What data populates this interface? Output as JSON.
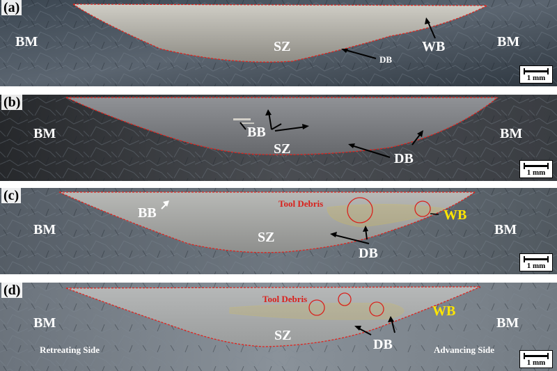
{
  "panels": [
    {
      "label": "(a)",
      "bm_left": "BM",
      "bm_right": "BM",
      "sz": "SZ",
      "wb": "WB",
      "db": "DB",
      "scale": "1 mm"
    },
    {
      "label": "(b)",
      "bm_left": "BM",
      "bm_right": "BM",
      "sz": "SZ",
      "bb": "BB",
      "db": "DB",
      "scale": "1 mm"
    },
    {
      "label": "(c)",
      "bm_left": "BM",
      "bm_right": "BM",
      "sz": "SZ",
      "bb": "BB",
      "wb": "WB",
      "db": "DB",
      "debris": "Tool Debris",
      "scale": "1 mm"
    },
    {
      "label": "(d)",
      "bm_left": "BM",
      "bm_right": "BM",
      "sz": "SZ",
      "wb": "WB",
      "db": "DB",
      "debris": "Tool Debris",
      "retreating": "Retreating Side",
      "advancing": "Advancing Side",
      "scale": "1 mm"
    }
  ],
  "colors": {
    "boundary": "#e0231d",
    "wb_zone": "#d8c24a",
    "circle": "#d9211c",
    "text": "#ffffff",
    "highlight": "#ffe600"
  }
}
